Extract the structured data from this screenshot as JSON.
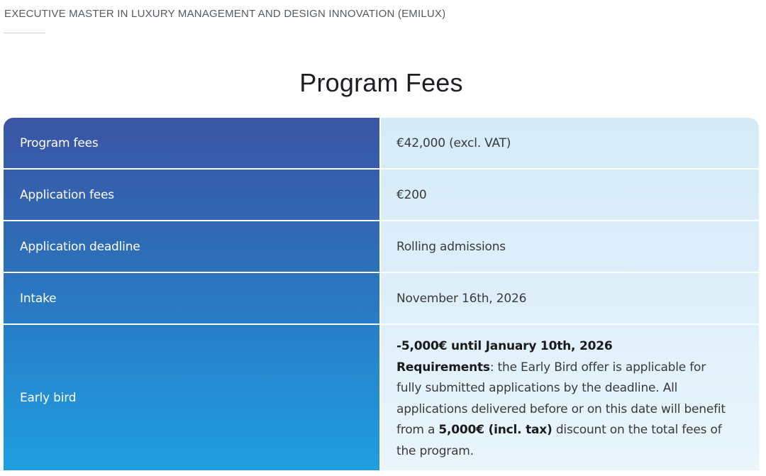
{
  "breadcrumb": "EXECUTIVE MASTER IN LUXURY MANAGEMENT AND DESIGN INNOVATION (EMILUX)",
  "title": "Program Fees",
  "rows": [
    {
      "label": "Program fees",
      "value": "€42,000 (excl. VAT)"
    },
    {
      "label": "Application fees",
      "value": "€200"
    },
    {
      "label": "Application deadline",
      "value": "Rolling admissions"
    },
    {
      "label": "Intake",
      "value": "November 16th, 2026"
    }
  ],
  "early_bird": {
    "label": "Early bird",
    "headline": "-5,000€ until January 10th, 2026",
    "req_label": "Requirements",
    "req_text": ": the Early Bird offer is applicable for fully submitted applications by the deadline. All applications delivered before or on this date will benefit from a ",
    "discount": "5,000€ (incl. tax)",
    "tail": " discount on the total fees of the program."
  }
}
